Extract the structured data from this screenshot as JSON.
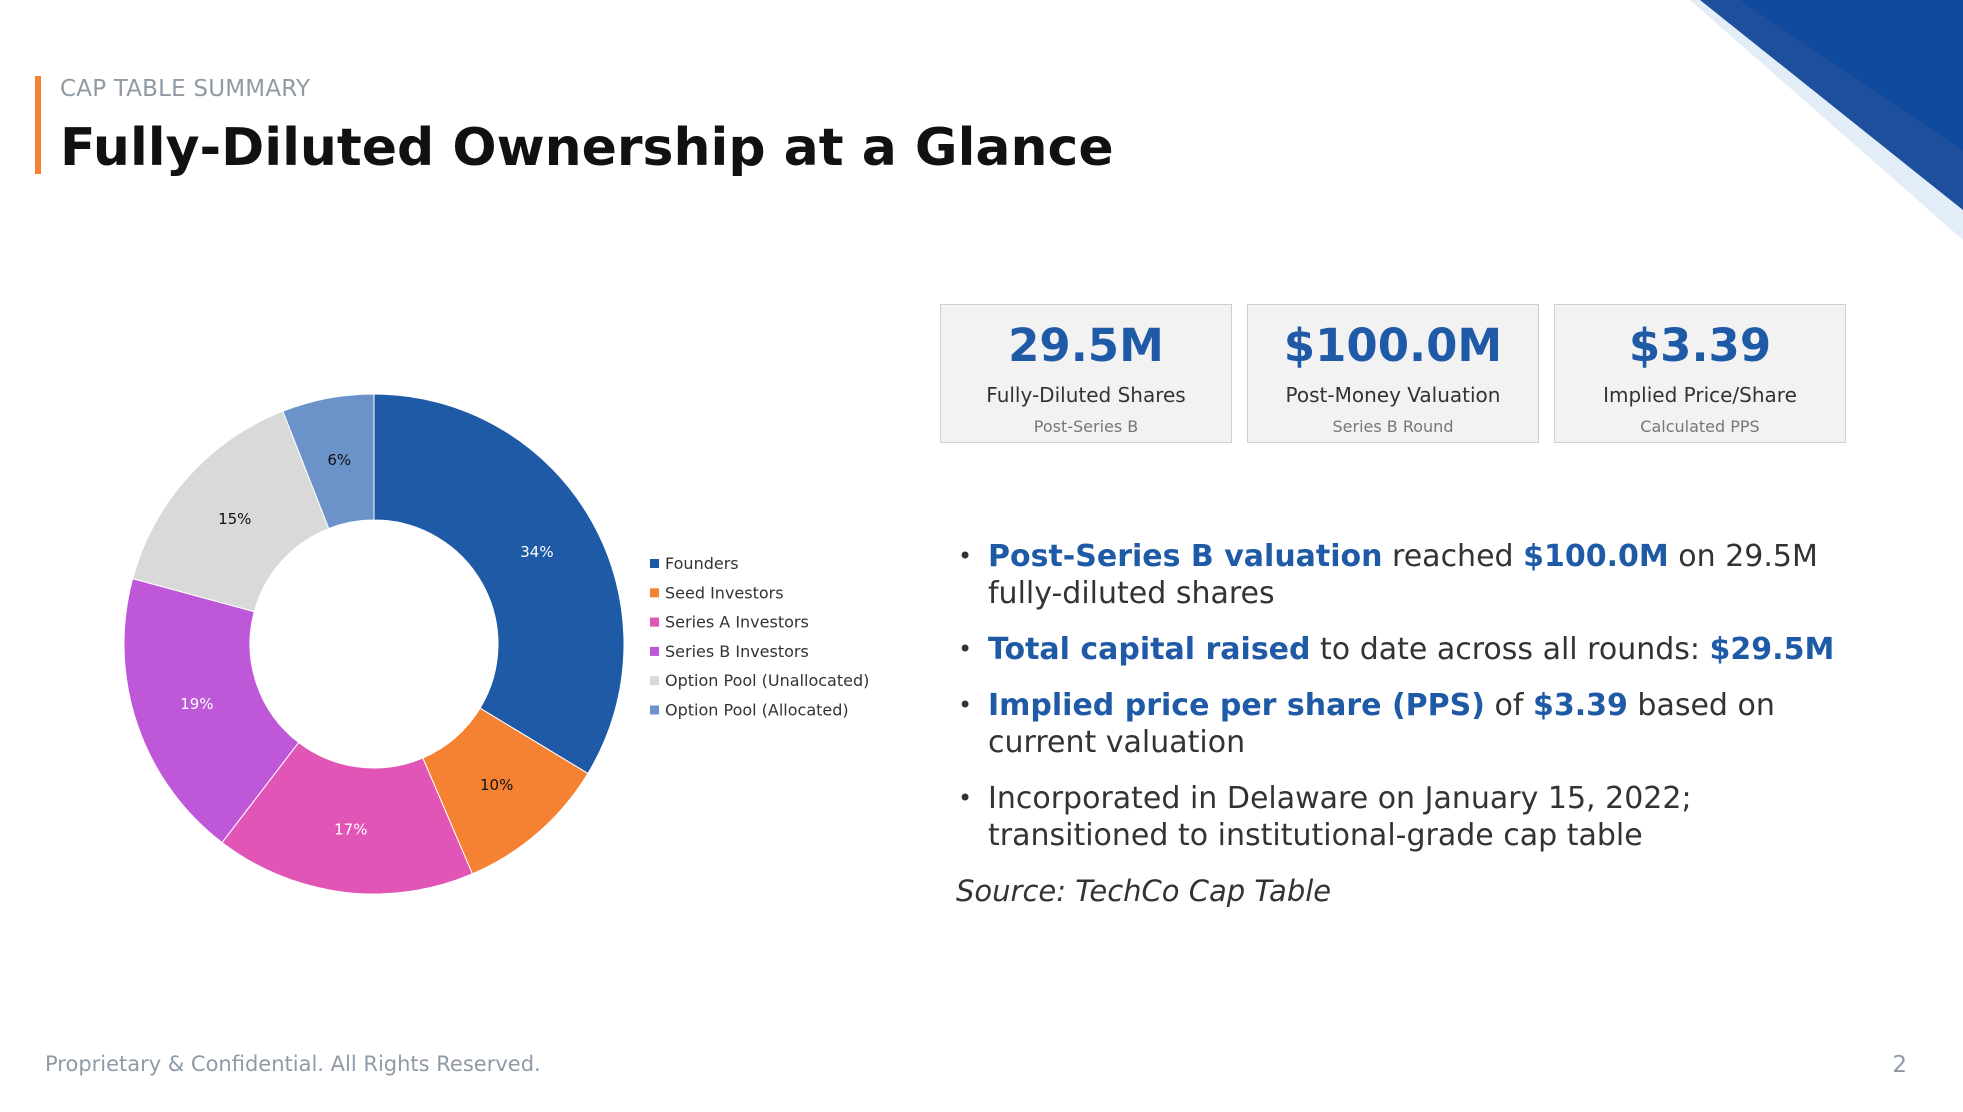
{
  "header": {
    "eyebrow": "CAP TABLE SUMMARY",
    "title": "Fully-Diluted Ownership at a Glance"
  },
  "chart_data": {
    "type": "pie",
    "subtype": "donut",
    "title": "",
    "categories": [
      "Founders",
      "Seed Investors",
      "Series A Investors",
      "Series B Investors",
      "Option Pool (Unallocated)",
      "Option Pool (Allocated)"
    ],
    "values": [
      34,
      10,
      17,
      19,
      15,
      6
    ],
    "labels": [
      "34%",
      "10%",
      "17%",
      "19%",
      "15%",
      "6%"
    ],
    "colors": [
      "#1f5aa6",
      "#f58233",
      "#e055b5",
      "#bf58d8",
      "#d9d9d9",
      "#6b93c9"
    ],
    "label_colors": [
      "#ffffff",
      "#111111",
      "#ffffff",
      "#ffffff",
      "#111111",
      "#111111"
    ],
    "legend_position": "right"
  },
  "kpis": [
    {
      "value": "29.5M",
      "label": "Fully-Diluted Shares",
      "sub": "Post-Series B"
    },
    {
      "value": "$100.0M",
      "label": "Post-Money Valuation",
      "sub": "Series B Round"
    },
    {
      "value": "$3.39",
      "label": "Implied Price/Share",
      "sub": "Calculated PPS"
    }
  ],
  "bullets": {
    "b1": {
      "hl1": "Post-Series B valuation",
      "t1": " reached ",
      "hl2": "$100.0M",
      "t2": " on 29.5M fully-diluted shares"
    },
    "b2": {
      "hl1": "Total capital raised",
      "t1": " to date across all rounds: ",
      "hl2": "$29.5M"
    },
    "b3": {
      "hl1": "Implied price per share (PPS)",
      "t1": " of ",
      "hl2": "$3.39",
      "t2": " based on current valuation"
    },
    "b4": {
      "t1": "Incorporated in Delaware on January 15, 2022; transitioned to institutional-grade cap table"
    }
  },
  "source": "Source: TechCo Cap Table",
  "footer": {
    "text": "Proprietary & Confidential.  All Rights Reserved.",
    "page": "2"
  }
}
